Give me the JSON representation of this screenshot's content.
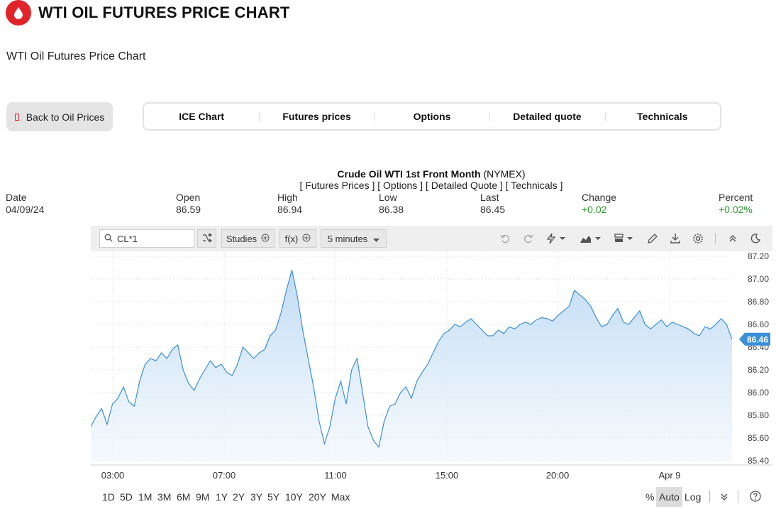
{
  "header": {
    "title": "WTI OIL FUTURES PRICE CHART",
    "logo_icon": "oil-drop-icon",
    "accent": "#e0242a"
  },
  "subtitle": "WTI Oil Futures Price Chart",
  "back_button": {
    "label": "Back to Oil Prices"
  },
  "tabs": [
    {
      "label": "ICE Chart"
    },
    {
      "label": "Futures prices"
    },
    {
      "label": "Options"
    },
    {
      "label": "Detailed quote"
    },
    {
      "label": "Technicals"
    }
  ],
  "quote": {
    "name": "Crude Oil WTI 1st Front Month",
    "exchange": "(NYMEX)",
    "links": "[ Futures Prices ] [ Options ] [ Detailed Quote ] [ Technicals ]",
    "columns": [
      {
        "label": "Date",
        "value": "04/09/24",
        "positive": false
      },
      {
        "label": "Open",
        "value": "86.59",
        "positive": false
      },
      {
        "label": "High",
        "value": "86.94",
        "positive": false
      },
      {
        "label": "Low",
        "value": "86.38",
        "positive": false
      },
      {
        "label": "Last",
        "value": "86.45",
        "positive": false
      },
      {
        "label": "Change",
        "value": "+0.02",
        "positive": true
      },
      {
        "label": "Percent",
        "value": "+0.02%",
        "positive": true
      }
    ]
  },
  "toolbar": {
    "symbol": "CL*1",
    "studies_label": "Studies",
    "fx_label": "f(x)",
    "interval_label": "5 minutes",
    "icons": [
      "shuffle-icon",
      "plus-circle-icon",
      "undo-icon",
      "redo-icon",
      "lightning-icon",
      "chart-type-icon",
      "layout-icon",
      "pencil-icon",
      "download-icon",
      "gear-icon",
      "collapse-icon",
      "moon-icon"
    ]
  },
  "bottombar": {
    "ranges": [
      "1D",
      "5D",
      "1M",
      "3M",
      "6M",
      "9M",
      "1Y",
      "2Y",
      "3Y",
      "5Y",
      "10Y",
      "20Y",
      "Max"
    ],
    "percent_label": "%",
    "auto_label": "Auto",
    "log_label": "Log"
  },
  "chart_data": {
    "type": "area",
    "ylim": [
      85.4,
      87.2
    ],
    "y_ticks": [
      "87.20",
      "87.00",
      "86.80",
      "86.60",
      "86.40",
      "86.20",
      "86.00",
      "85.80",
      "85.60",
      "85.40"
    ],
    "x_ticks": [
      "03:00",
      "07:00",
      "11:00",
      "15:00",
      "20:00",
      "Apr 9"
    ],
    "last_value_label": "86.46",
    "line_color": "#3a8fd8",
    "grid": true,
    "series": [
      {
        "values": [
          85.7,
          85.79,
          85.86,
          85.72,
          85.9,
          85.95,
          86.05,
          85.92,
          85.88,
          86.1,
          86.25,
          86.3,
          86.28,
          86.35,
          86.3,
          86.38,
          86.42,
          86.2,
          86.08,
          86.02,
          86.12,
          86.2,
          86.28,
          86.22,
          86.25,
          86.18,
          86.15,
          86.25,
          86.4,
          86.35,
          86.3,
          86.35,
          86.38,
          86.5,
          86.55,
          86.7,
          86.9,
          87.08,
          86.85,
          86.55,
          86.3,
          86.05,
          85.75,
          85.55,
          85.7,
          85.95,
          86.1,
          85.9,
          86.2,
          86.3,
          86.0,
          85.7,
          85.58,
          85.52,
          85.75,
          85.88,
          85.9,
          86.0,
          86.05,
          85.95,
          86.1,
          86.18,
          86.25,
          86.35,
          86.45,
          86.52,
          86.55,
          86.6,
          86.58,
          86.62,
          86.65,
          86.6,
          86.55,
          86.5,
          86.5,
          86.55,
          86.52,
          86.58,
          86.56,
          86.6,
          86.62,
          86.6,
          86.64,
          86.66,
          86.65,
          86.63,
          86.68,
          86.72,
          86.76,
          86.9,
          86.86,
          86.82,
          86.76,
          86.66,
          86.58,
          86.6,
          86.68,
          86.74,
          86.62,
          86.6,
          86.66,
          86.72,
          86.6,
          86.56,
          86.6,
          86.64,
          86.58,
          86.62,
          86.6,
          86.58,
          86.56,
          86.52,
          86.5,
          86.58,
          86.56,
          86.6,
          86.65,
          86.6,
          86.47
        ]
      }
    ]
  }
}
